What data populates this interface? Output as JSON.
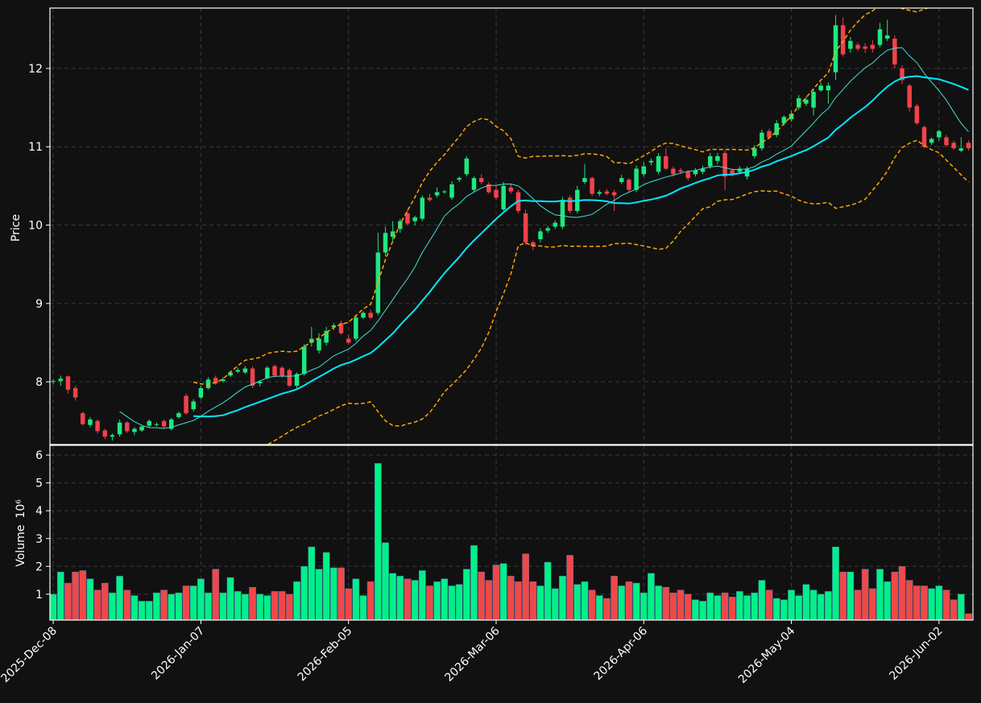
{
  "chart_data": {
    "type": "candlestick",
    "ylabel": "Price",
    "volume_ylabel": "Volume",
    "volume_scale": "10⁶",
    "xlim": [
      -0.45,
      124.6
    ],
    "xticks": [
      {
        "value": 0,
        "label": "2025-Dec-08"
      },
      {
        "value": 20,
        "label": "2026-Jan-07"
      },
      {
        "value": 40,
        "label": "2026-Feb-05"
      },
      {
        "value": 60,
        "label": "2026-Mar-06"
      },
      {
        "value": 80,
        "label": "2026-Apr-06"
      },
      {
        "value": 100,
        "label": "2026-May-04"
      },
      {
        "value": 120,
        "label": "2026-Jun-02"
      }
    ],
    "ylim": [
      7.2,
      12.77
    ],
    "yticks": [
      8,
      9,
      10,
      11,
      12
    ],
    "y2lim": [
      0.07,
      6.35
    ],
    "y2ticks": [
      1,
      2,
      3,
      4,
      5,
      6
    ],
    "grid": true,
    "up_color": "#1de87e",
    "down_color": "#f2424b",
    "volume_up_color": "#00f088",
    "volume_down_color": "#f04848",
    "indicators": {
      "ma": [
        {
          "period": 10,
          "color": "#3fe0d8",
          "width": 1
        },
        {
          "period": 20,
          "color": "#00e8ff",
          "width": 2
        }
      ],
      "bollinger": {
        "period": 20,
        "std": 2,
        "color": "#ffa500"
      }
    },
    "ohlc": [
      [
        8.0,
        8.03,
        7.97,
        8.01
      ],
      [
        8.01,
        8.08,
        7.95,
        8.04
      ],
      [
        8.07,
        8.08,
        7.85,
        7.9
      ],
      [
        7.92,
        7.95,
        7.76,
        7.8
      ],
      [
        7.6,
        7.62,
        7.44,
        7.46
      ],
      [
        7.45,
        7.55,
        7.42,
        7.52
      ],
      [
        7.5,
        7.52,
        7.34,
        7.37
      ],
      [
        7.38,
        7.4,
        7.27,
        7.3
      ],
      [
        7.3,
        7.34,
        7.25,
        7.32
      ],
      [
        7.33,
        7.52,
        7.3,
        7.48
      ],
      [
        7.48,
        7.5,
        7.35,
        7.37
      ],
      [
        7.36,
        7.42,
        7.32,
        7.4
      ],
      [
        7.38,
        7.45,
        7.36,
        7.43
      ],
      [
        7.44,
        7.52,
        7.42,
        7.5
      ],
      [
        7.45,
        7.48,
        7.43,
        7.46
      ],
      [
        7.5,
        7.52,
        7.41,
        7.43
      ],
      [
        7.4,
        7.54,
        7.38,
        7.52
      ],
      [
        7.55,
        7.62,
        7.53,
        7.6
      ],
      [
        7.82,
        7.85,
        7.58,
        7.6
      ],
      [
        7.65,
        7.78,
        7.62,
        7.75
      ],
      [
        7.8,
        7.95,
        7.78,
        7.92
      ],
      [
        7.92,
        8.06,
        7.9,
        8.03
      ],
      [
        8.05,
        8.08,
        7.96,
        7.98
      ],
      [
        8.01,
        8.06,
        7.99,
        8.03
      ],
      [
        8.08,
        8.14,
        8.06,
        8.12
      ],
      [
        8.13,
        8.18,
        8.11,
        8.15
      ],
      [
        8.12,
        8.2,
        8.1,
        8.17
      ],
      [
        8.17,
        8.2,
        7.92,
        7.95
      ],
      [
        7.98,
        8.02,
        7.94,
        8.0
      ],
      [
        8.05,
        8.2,
        8.03,
        8.18
      ],
      [
        8.2,
        8.22,
        8.06,
        8.08
      ],
      [
        8.18,
        8.2,
        8.05,
        8.08
      ],
      [
        8.15,
        8.17,
        7.93,
        7.95
      ],
      [
        7.95,
        8.12,
        7.92,
        8.1
      ],
      [
        8.1,
        8.48,
        8.08,
        8.45
      ],
      [
        8.5,
        8.7,
        8.45,
        8.55
      ],
      [
        8.4,
        8.62,
        8.36,
        8.55
      ],
      [
        8.5,
        8.7,
        8.46,
        8.65
      ],
      [
        8.7,
        8.75,
        8.66,
        8.72
      ],
      [
        8.75,
        8.78,
        8.6,
        8.62
      ],
      [
        8.55,
        8.6,
        8.48,
        8.5
      ],
      [
        8.55,
        8.85,
        8.52,
        8.82
      ],
      [
        8.82,
        8.9,
        8.8,
        8.88
      ],
      [
        8.88,
        8.92,
        8.8,
        8.82
      ],
      [
        8.88,
        9.9,
        8.85,
        9.65
      ],
      [
        9.65,
        9.98,
        9.6,
        9.9
      ],
      [
        9.85,
        10.05,
        9.8,
        9.92
      ],
      [
        9.95,
        10.08,
        9.9,
        10.05
      ],
      [
        10.15,
        10.2,
        10.0,
        10.02
      ],
      [
        10.05,
        10.12,
        10.0,
        10.1
      ],
      [
        10.08,
        10.38,
        10.05,
        10.35
      ],
      [
        10.35,
        10.4,
        10.3,
        10.32
      ],
      [
        10.38,
        10.48,
        10.35,
        10.42
      ],
      [
        10.42,
        10.45,
        10.4,
        10.43
      ],
      [
        10.35,
        10.56,
        10.32,
        10.52
      ],
      [
        10.58,
        10.62,
        10.55,
        10.6
      ],
      [
        10.65,
        10.88,
        10.62,
        10.85
      ],
      [
        10.45,
        10.62,
        10.42,
        10.6
      ],
      [
        10.6,
        10.65,
        10.52,
        10.55
      ],
      [
        10.52,
        10.55,
        10.4,
        10.42
      ],
      [
        10.45,
        10.5,
        10.32,
        10.35
      ],
      [
        10.2,
        10.55,
        10.18,
        10.5
      ],
      [
        10.48,
        10.52,
        10.4,
        10.43
      ],
      [
        10.42,
        10.45,
        10.15,
        10.18
      ],
      [
        10.15,
        10.2,
        9.75,
        9.78
      ],
      [
        9.78,
        9.8,
        9.68,
        9.73
      ],
      [
        9.82,
        9.96,
        9.78,
        9.92
      ],
      [
        9.93,
        9.99,
        9.9,
        9.96
      ],
      [
        9.98,
        10.06,
        9.95,
        10.03
      ],
      [
        9.98,
        10.36,
        9.95,
        10.32
      ],
      [
        10.35,
        10.38,
        10.15,
        10.18
      ],
      [
        10.18,
        10.5,
        10.15,
        10.45
      ],
      [
        10.55,
        10.78,
        10.52,
        10.6
      ],
      [
        10.6,
        10.62,
        10.37,
        10.4
      ],
      [
        10.4,
        10.45,
        10.37,
        10.42
      ],
      [
        10.43,
        10.46,
        10.38,
        10.4
      ],
      [
        10.42,
        10.45,
        10.18,
        10.38
      ],
      [
        10.55,
        10.64,
        10.52,
        10.6
      ],
      [
        10.58,
        10.6,
        10.42,
        10.45
      ],
      [
        10.45,
        10.76,
        10.42,
        10.72
      ],
      [
        10.65,
        10.8,
        10.62,
        10.75
      ],
      [
        10.8,
        10.85,
        10.76,
        10.82
      ],
      [
        10.68,
        10.92,
        10.65,
        10.88
      ],
      [
        10.88,
        10.98,
        10.7,
        10.72
      ],
      [
        10.72,
        10.75,
        10.62,
        10.65
      ],
      [
        10.7,
        10.73,
        10.65,
        10.68
      ],
      [
        10.68,
        10.7,
        10.57,
        10.6
      ],
      [
        10.65,
        10.73,
        10.62,
        10.7
      ],
      [
        10.68,
        10.76,
        10.65,
        10.72
      ],
      [
        10.75,
        10.92,
        10.72,
        10.88
      ],
      [
        10.82,
        10.92,
        10.78,
        10.88
      ],
      [
        10.92,
        10.95,
        10.45,
        10.62
      ],
      [
        10.7,
        10.72,
        10.62,
        10.65
      ],
      [
        10.68,
        10.75,
        10.65,
        10.72
      ],
      [
        10.62,
        10.75,
        10.58,
        10.72
      ],
      [
        10.88,
        11.02,
        10.85,
        10.98
      ],
      [
        10.98,
        11.22,
        10.95,
        11.18
      ],
      [
        11.2,
        11.23,
        11.1,
        11.12
      ],
      [
        11.15,
        11.34,
        11.12,
        11.3
      ],
      [
        11.3,
        11.4,
        11.27,
        11.38
      ],
      [
        11.35,
        11.46,
        11.32,
        11.42
      ],
      [
        11.5,
        11.66,
        11.47,
        11.62
      ],
      [
        11.55,
        11.64,
        11.52,
        11.6
      ],
      [
        11.5,
        11.74,
        11.4,
        11.7
      ],
      [
        11.72,
        11.82,
        11.7,
        11.78
      ],
      [
        11.72,
        11.82,
        11.55,
        11.78
      ],
      [
        11.95,
        12.68,
        11.85,
        12.55
      ],
      [
        12.55,
        12.65,
        12.15,
        12.18
      ],
      [
        12.25,
        12.4,
        12.2,
        12.35
      ],
      [
        12.3,
        12.33,
        12.22,
        12.25
      ],
      [
        12.28,
        12.32,
        12.2,
        12.25
      ],
      [
        12.3,
        12.36,
        12.2,
        12.25
      ],
      [
        12.3,
        12.58,
        12.27,
        12.5
      ],
      [
        12.38,
        12.62,
        12.35,
        12.42
      ],
      [
        12.38,
        12.42,
        12.0,
        12.05
      ],
      [
        12.0,
        12.04,
        11.8,
        11.85
      ],
      [
        11.78,
        11.8,
        11.45,
        11.5
      ],
      [
        11.52,
        11.55,
        11.28,
        11.3
      ],
      [
        11.25,
        11.27,
        10.98,
        11.0
      ],
      [
        11.05,
        11.12,
        11.02,
        11.1
      ],
      [
        11.12,
        11.22,
        11.08,
        11.2
      ],
      [
        11.12,
        11.15,
        11.0,
        11.02
      ],
      [
        11.05,
        11.08,
        10.96,
        10.98
      ],
      [
        10.95,
        11.12,
        10.93,
        10.98
      ],
      [
        11.05,
        11.08,
        10.95,
        10.98
      ]
    ],
    "volume": [
      1.0,
      1.8,
      1.4,
      1.8,
      1.85,
      1.55,
      1.15,
      1.4,
      1.05,
      1.65,
      1.15,
      0.95,
      0.75,
      0.75,
      1.05,
      1.15,
      1.0,
      1.05,
      1.3,
      1.3,
      1.55,
      1.05,
      1.9,
      1.05,
      1.6,
      1.1,
      1.0,
      1.25,
      1.0,
      0.95,
      1.1,
      1.1,
      1.0,
      1.45,
      2.0,
      2.7,
      1.9,
      2.5,
      1.95,
      1.95,
      1.2,
      1.55,
      0.95,
      1.45,
      5.7,
      2.85,
      1.75,
      1.65,
      1.55,
      1.5,
      1.85,
      1.3,
      1.45,
      1.55,
      1.3,
      1.35,
      1.9,
      2.75,
      1.8,
      1.5,
      2.05,
      2.1,
      1.65,
      1.45,
      2.45,
      1.45,
      1.3,
      2.15,
      1.2,
      1.65,
      2.4,
      1.35,
      1.45,
      1.15,
      0.95,
      0.85,
      1.65,
      1.3,
      1.45,
      1.4,
      1.05,
      1.75,
      1.3,
      1.25,
      1.05,
      1.15,
      1.0,
      0.8,
      0.75,
      1.05,
      0.95,
      1.05,
      0.9,
      1.1,
      0.95,
      1.05,
      1.5,
      1.15,
      0.85,
      0.8,
      1.15,
      0.95,
      1.35,
      1.15,
      1.0,
      1.1,
      2.7,
      1.8,
      1.8,
      1.15,
      1.9,
      1.2,
      1.9,
      1.45,
      1.8,
      2.0,
      1.5,
      1.3,
      1.3,
      1.2,
      1.3,
      1.15,
      0.8,
      1.0,
      0.3
    ]
  }
}
